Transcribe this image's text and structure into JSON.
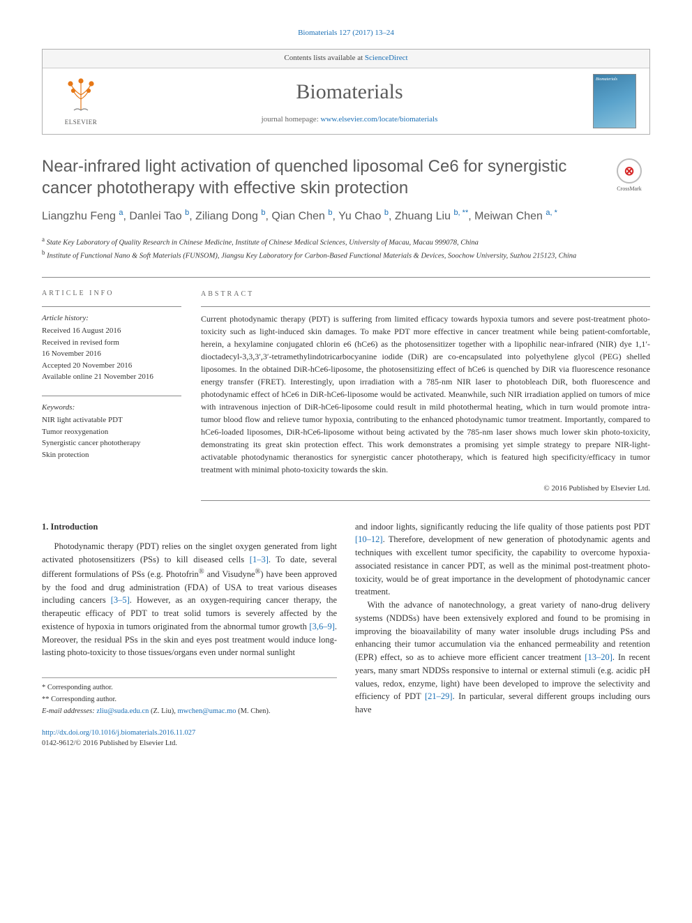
{
  "citation": "Biomaterials 127 (2017) 13–24",
  "header": {
    "contents_line_prefix": "Contents lists available at ",
    "contents_link": "ScienceDirect",
    "journal_name": "Biomaterials",
    "homepage_prefix": "journal homepage: ",
    "homepage_url": "www.elsevier.com/locate/biomaterials",
    "publisher_name": "ELSEVIER"
  },
  "crossmark": "CrossMark",
  "title": "Near-infrared light activation of quenched liposomal Ce6 for synergistic cancer phototherapy with effective skin protection",
  "authors_html": "Liangzhu Feng <sup>a</sup>, Danlei Tao <sup>b</sup>, Ziliang Dong <sup>b</sup>, Qian Chen <sup>b</sup>, Yu Chao <sup>b</sup>, Zhuang Liu <sup>b, **</sup>, Meiwan Chen <sup>a, *</sup>",
  "affiliations": {
    "a": "State Key Laboratory of Quality Research in Chinese Medicine, Institute of Chinese Medical Sciences, University of Macau, Macau 999078, China",
    "b": "Institute of Functional Nano & Soft Materials (FUNSOM), Jiangsu Key Laboratory for Carbon-Based Functional Materials & Devices, Soochow University, Suzhou 215123, China"
  },
  "article_info": {
    "heading": "ARTICLE INFO",
    "history_label": "Article history:",
    "history": [
      "Received 16 August 2016",
      "Received in revised form",
      "16 November 2016",
      "Accepted 20 November 2016",
      "Available online 21 November 2016"
    ],
    "keywords_label": "Keywords:",
    "keywords": [
      "NIR light activatable PDT",
      "Tumor reoxygenation",
      "Synergistic cancer phototherapy",
      "Skin protection"
    ]
  },
  "abstract": {
    "heading": "ABSTRACT",
    "text": "Current photodynamic therapy (PDT) is suffering from limited efficacy towards hypoxia tumors and severe post-treatment photo-toxicity such as light-induced skin damages. To make PDT more effective in cancer treatment while being patient-comfortable, herein, a hexylamine conjugated chlorin e6 (hCe6) as the photosensitizer together with a lipophilic near-infrared (NIR) dye 1,1′-dioctadecyl-3,3,3′,3′-tetramethylindotricarbocyanine iodide (DiR) are co-encapsulated into polyethylene glycol (PEG) shelled liposomes. In the obtained DiR-hCe6-liposome, the photosensitizing effect of hCe6 is quenched by DiR via fluorescence resonance energy transfer (FRET). Interestingly, upon irradiation with a 785-nm NIR laser to photobleach DiR, both fluorescence and photodynamic effect of hCe6 in DiR-hCe6-liposome would be activated. Meanwhile, such NIR irradiation applied on tumors of mice with intravenous injection of DiR-hCe6-liposome could result in mild photothermal heating, which in turn would promote intra-tumor blood flow and relieve tumor hypoxia, contributing to the enhanced photodynamic tumor treatment. Importantly, compared to hCe6-loaded liposomes, DiR-hCe6-liposome without being activated by the 785-nm laser shows much lower skin photo-toxicity, demonstrating its great skin protection effect. This work demonstrates a promising yet simple strategy to prepare NIR-light-activatable photodynamic theranostics for synergistic cancer phototherapy, which is featured high specificity/efficacy in tumor treatment with minimal photo-toxicity towards the skin.",
    "copyright": "© 2016 Published by Elsevier Ltd."
  },
  "intro": {
    "heading": "1. Introduction",
    "col1": "Photodynamic therapy (PDT) relies on the singlet oxygen generated from light activated photosensitizers (PSs) to kill diseased cells <span class='ref-link'>[1–3]</span>. To date, several different formulations of PSs (e.g. Photofrin<sup>®</sup> and Visudyne<sup>®</sup>) have been approved by the food and drug administration (FDA) of USA to treat various diseases including cancers <span class='ref-link'>[3–5]</span>. However, as an oxygen-requiring cancer therapy, the therapeutic efficacy of PDT to treat solid tumors is severely affected by the existence of hypoxia in tumors originated from the abnormal tumor growth <span class='ref-link'>[3,6–9]</span>. Moreover, the residual PSs in the skin and eyes post treatment would induce long-lasting photo-toxicity to those tissues/organs even under normal sunlight",
    "col2": "and indoor lights, significantly reducing the life quality of those patients post PDT <span class='ref-link'>[10–12]</span>. Therefore, development of new generation of photodynamic agents and techniques with excellent tumor specificity, the capability to overcome hypoxia-associated resistance in cancer PDT, as well as the minimal post-treatment photo-toxicity, would be of great importance in the development of photodynamic cancer treatment.",
    "col2b": "With the advance of nanotechnology, a great variety of nano-drug delivery systems (NDDSs) have been extensively explored and found to be promising in improving the bioavailability of many water insoluble drugs including PSs and enhancing their tumor accumulation via the enhanced permeability and retention (EPR) effect, so as to achieve more efficient cancer treatment <span class='ref-link'>[13–20]</span>. In recent years, many smart NDDSs responsive to internal or external stimuli (e.g. acidic pH values, redox, enzyme, light) have been developed to improve the selectivity and efficiency of PDT <span class='ref-link'>[21–29]</span>. In particular, several different groups including ours have"
  },
  "footnotes": {
    "corr1": "* Corresponding author.",
    "corr2": "** Corresponding author.",
    "email_label": "E-mail addresses:",
    "email1": "zliu@suda.edu.cn",
    "email1_name": "(Z. Liu),",
    "email2": "mwchen@umac.mo",
    "email2_name": "(M. Chen)."
  },
  "footer": {
    "doi": "http://dx.doi.org/10.1016/j.biomaterials.2016.11.027",
    "issn_copy": "0142-9612/© 2016 Published by Elsevier Ltd."
  }
}
